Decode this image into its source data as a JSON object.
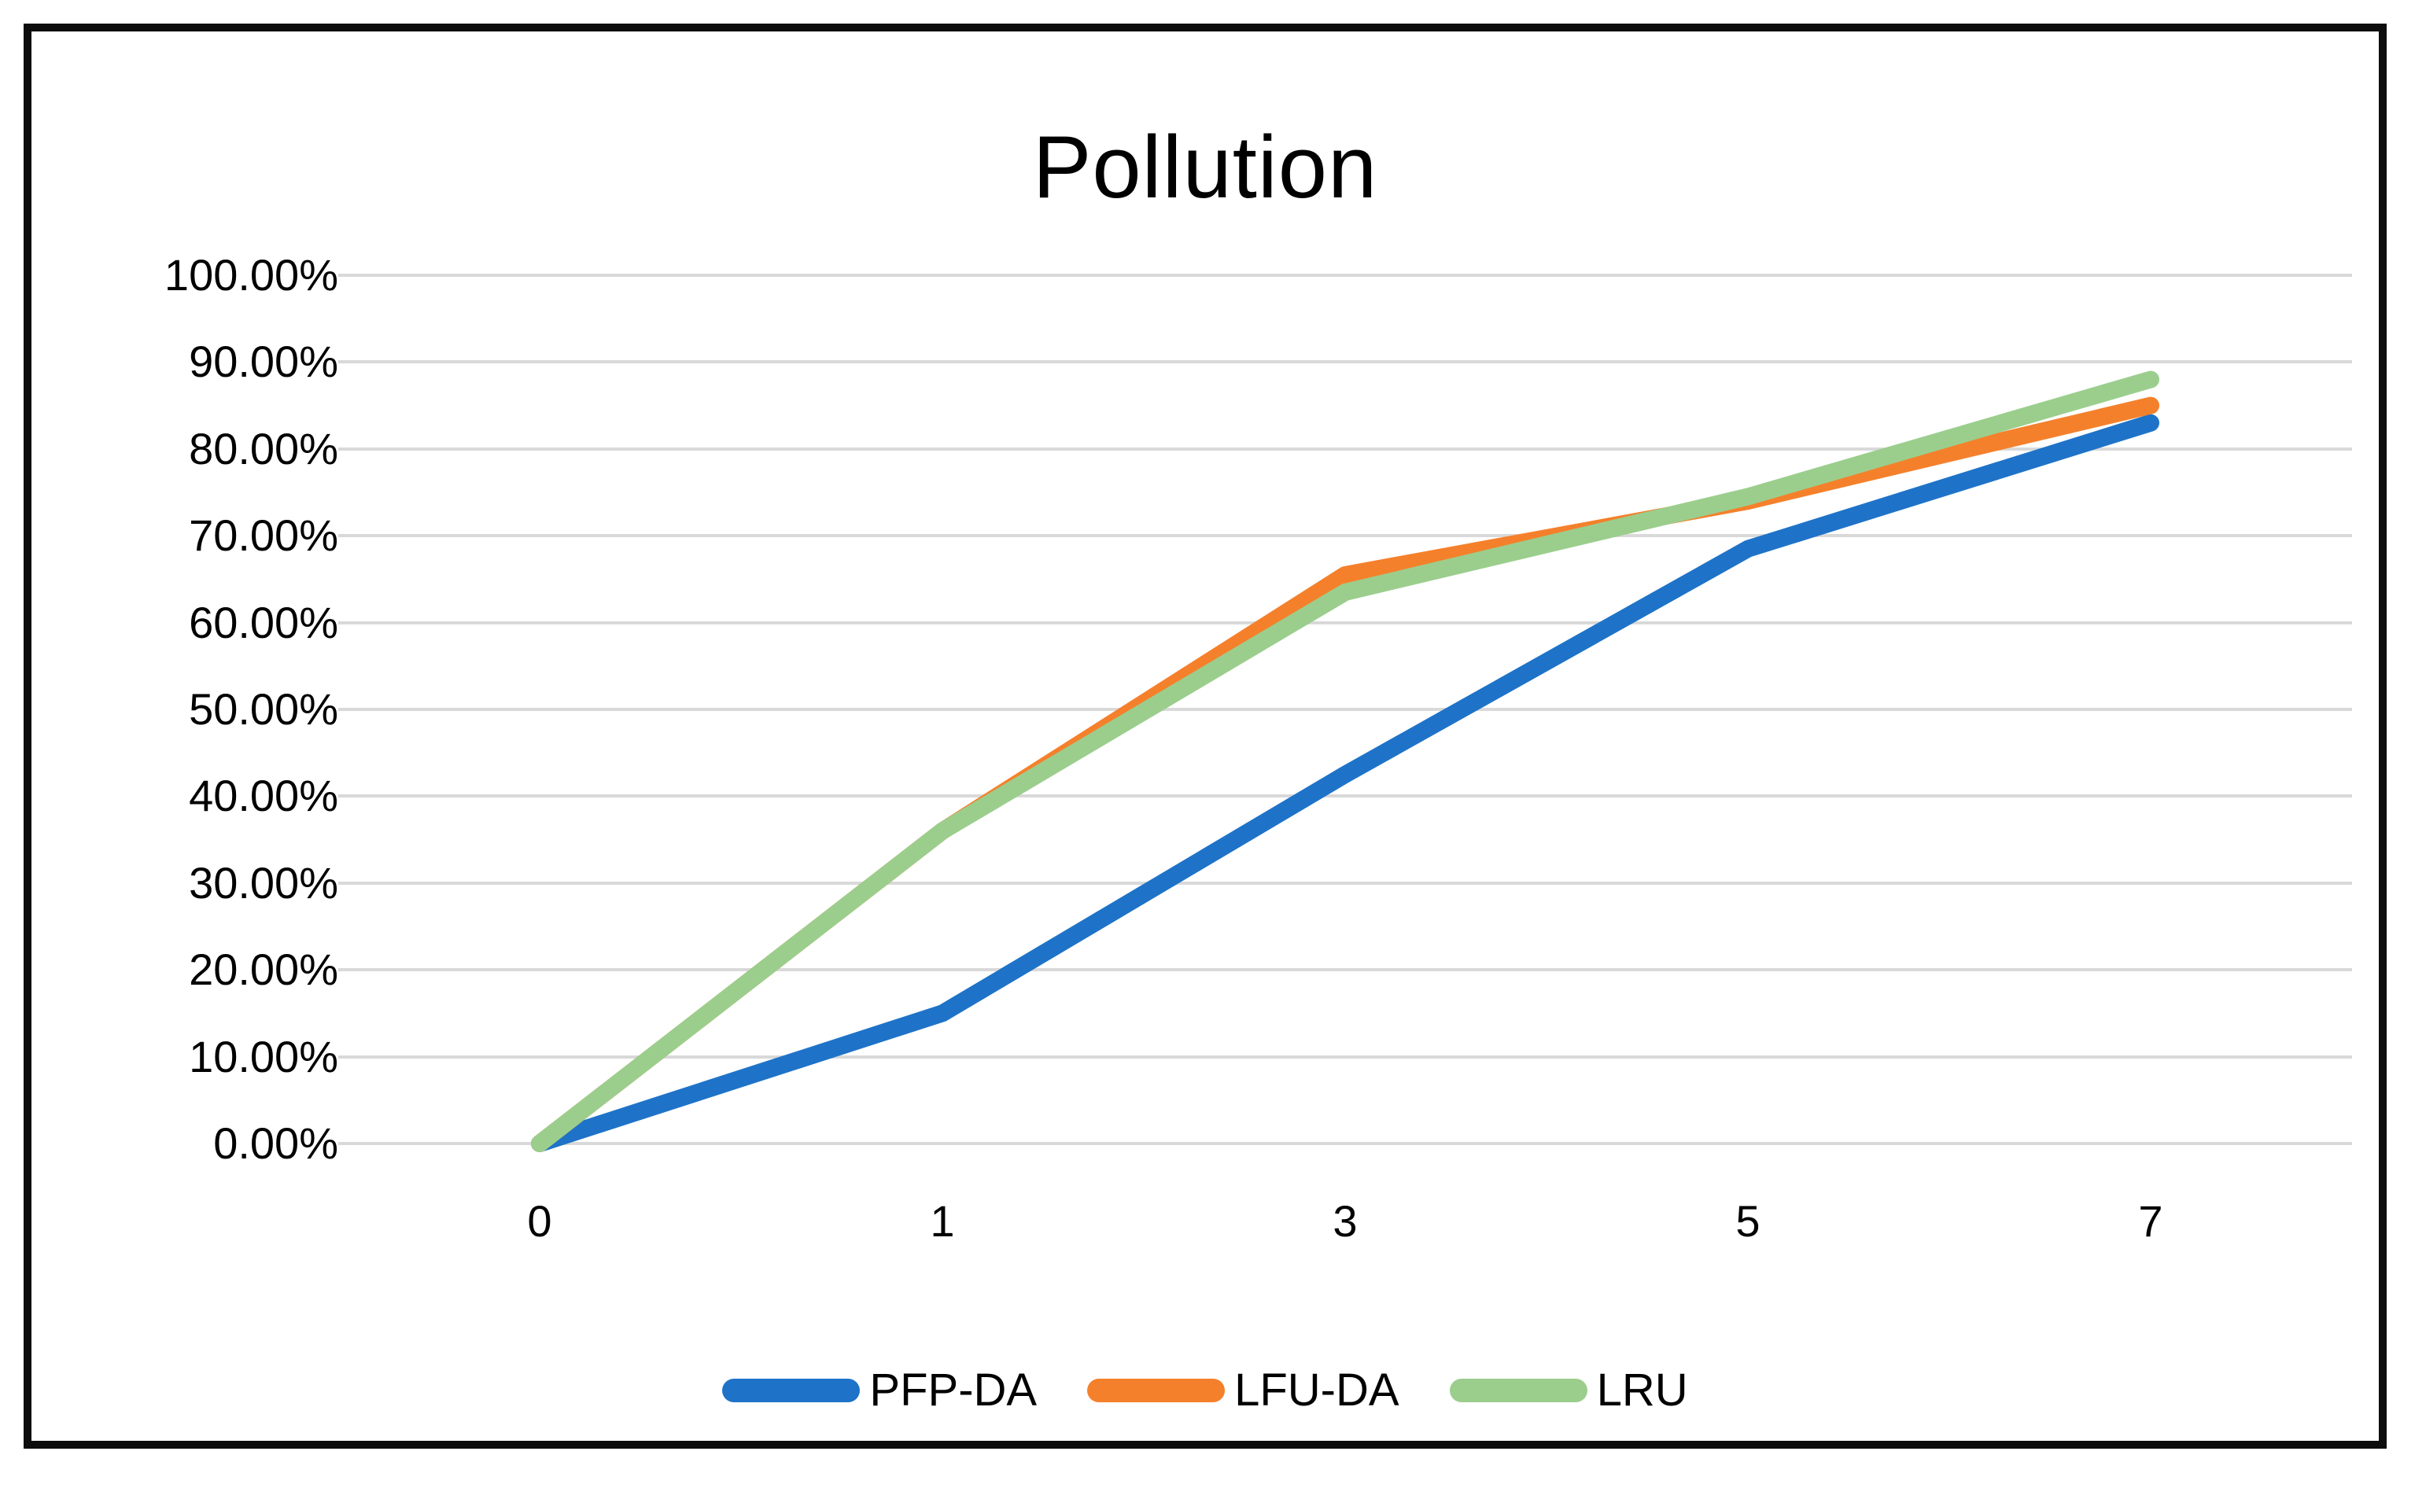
{
  "title": "Pollution",
  "chart_data": {
    "type": "line",
    "title": "Pollution",
    "categories": [
      "0",
      "1",
      "3",
      "5",
      "7"
    ],
    "series": [
      {
        "name": "PFP-DA",
        "color": "#1E73C8",
        "values": [
          0,
          15,
          42.5,
          68.5,
          83
        ]
      },
      {
        "name": "LFU-DA",
        "color": "#F5802B",
        "values": [
          0,
          36,
          65.5,
          74,
          85
        ]
      },
      {
        "name": "LRU",
        "color": "#9BCE8D",
        "values": [
          0,
          36,
          63.5,
          74.5,
          88
        ]
      }
    ],
    "xlabel": "",
    "ylabel": "",
    "ylim": [
      0,
      100
    ],
    "ytick_step": 10,
    "yaxis_labels": [
      "100.00%",
      "90.00%",
      "80.00%",
      "70.00%",
      "60.00%",
      "50.00%",
      "40.00%",
      "30.00%",
      "20.00%",
      "10.00%",
      "0.00%"
    ],
    "values_unit": "percent",
    "grid": true,
    "gridline_color": "#D9D9D9",
    "legend_position": "bottom",
    "frame_color": "#0d0d0d",
    "background_color": "#FFFFFF"
  }
}
